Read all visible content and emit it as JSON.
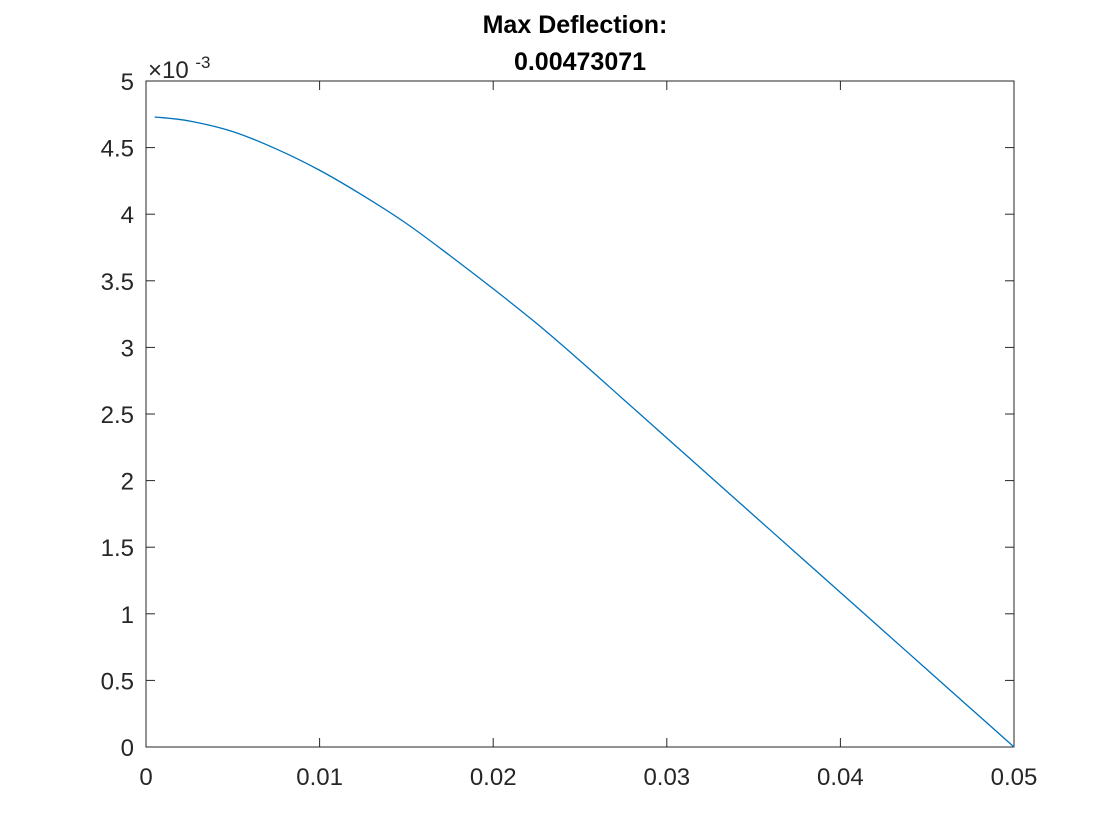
{
  "chart_data": {
    "type": "line",
    "title_lines": [
      "Max Deflection:",
      "0.00473071"
    ],
    "xlabel": "",
    "ylabel": "",
    "xlim": [
      0,
      0.05
    ],
    "ylim": [
      0,
      5
    ],
    "x_ticks": [
      0,
      0.01,
      0.02,
      0.03,
      0.04,
      0.05
    ],
    "x_tick_labels": [
      "0",
      "0.01",
      "0.02",
      "0.03",
      "0.04",
      "0.05"
    ],
    "y_ticks": [
      0,
      0.5,
      1,
      1.5,
      2,
      2.5,
      3,
      3.5,
      4,
      4.5,
      5
    ],
    "y_tick_labels": [
      "0",
      "0.5",
      "1",
      "1.5",
      "2",
      "2.5",
      "3",
      "3.5",
      "4",
      "4.5",
      "5"
    ],
    "y_exponent": {
      "multiplier": "×10",
      "power": "-3"
    },
    "grid": false,
    "series": [
      {
        "color": "#0072BD",
        "x": [
          0.0005,
          0.0025,
          0.005,
          0.0075,
          0.01,
          0.0125,
          0.015,
          0.0175,
          0.02,
          0.0225,
          0.025,
          0.0275,
          0.03,
          0.0325,
          0.035,
          0.0375,
          0.04,
          0.0425,
          0.045,
          0.0475,
          0.05
        ],
        "y": [
          4.73,
          4.7,
          4.62,
          4.49,
          4.33,
          4.14,
          3.93,
          3.69,
          3.44,
          3.18,
          2.9,
          2.61,
          2.32,
          2.03,
          1.74,
          1.45,
          1.16,
          0.87,
          0.58,
          0.29,
          0.0
        ]
      }
    ]
  }
}
